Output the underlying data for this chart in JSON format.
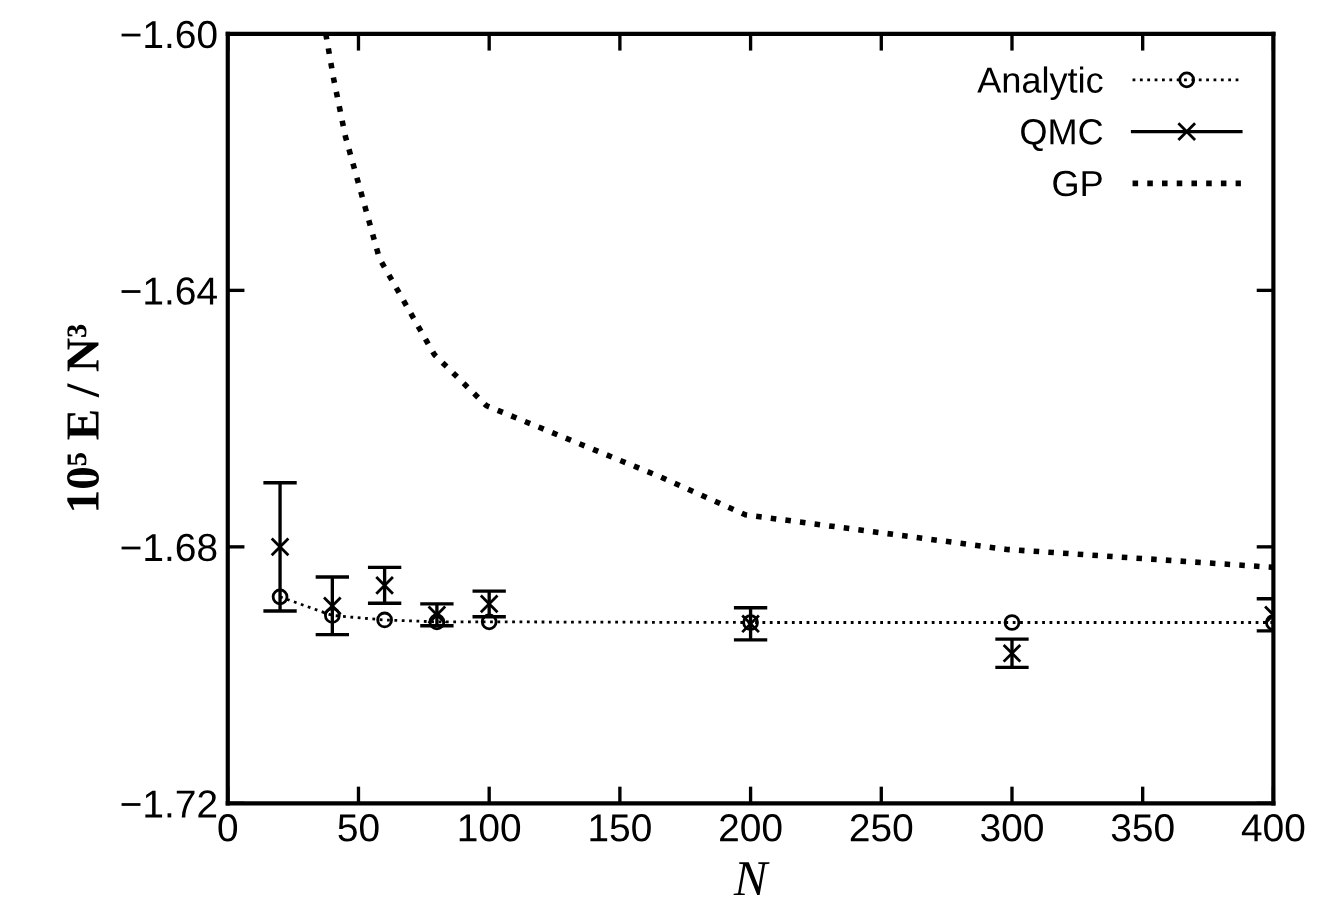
{
  "chart_data": {
    "type": "line",
    "xlabel": "N",
    "ylabel": "10⁵ E / N³",
    "xlim": [
      0,
      400
    ],
    "ylim": [
      -1.72,
      -1.6
    ],
    "xticks": [
      0,
      50,
      100,
      150,
      200,
      250,
      300,
      350,
      400
    ],
    "yticks": [
      {
        "value": -1.72,
        "label": "−1.72"
      },
      {
        "value": -1.68,
        "label": "−1.68"
      },
      {
        "value": -1.64,
        "label": "−1.64"
      },
      {
        "value": -1.6,
        "label": "−1.60"
      }
    ],
    "grid": false,
    "legend": "top right",
    "series": [
      {
        "name": "Analytic",
        "color": "#000000",
        "marker": "circle",
        "line_style": "dotted",
        "x": [
          20,
          40,
          60,
          80,
          100,
          200,
          300,
          400
        ],
        "values": [
          -1.6878,
          -1.6907,
          -1.6914,
          -1.6917,
          -1.6917,
          -1.6918,
          -1.6918,
          -1.6918
        ]
      },
      {
        "name": "QMC",
        "type": "scatter",
        "color": "#000000",
        "marker": "cross",
        "x": [
          20,
          40,
          60,
          80,
          100,
          200,
          300,
          400
        ],
        "values": [
          -1.68,
          -1.6892,
          -1.686,
          -1.6906,
          -1.6889,
          -1.692,
          -1.6966,
          -1.6906
        ],
        "errors": [
          0.01,
          0.0045,
          0.0028,
          0.0017,
          0.002,
          0.0025,
          0.0022,
          0.0025
        ]
      },
      {
        "name": "GP",
        "color": "#000000",
        "line_style": "dotted",
        "x": [
          37.5,
          40.5,
          45,
          58,
          79,
          99,
          165,
          198,
          298,
          400
        ],
        "values": [
          -1.6,
          -1.607,
          -1.616,
          -1.635,
          -1.65,
          -1.658,
          -1.669,
          -1.675,
          -1.6804,
          -1.6832
        ]
      }
    ]
  }
}
